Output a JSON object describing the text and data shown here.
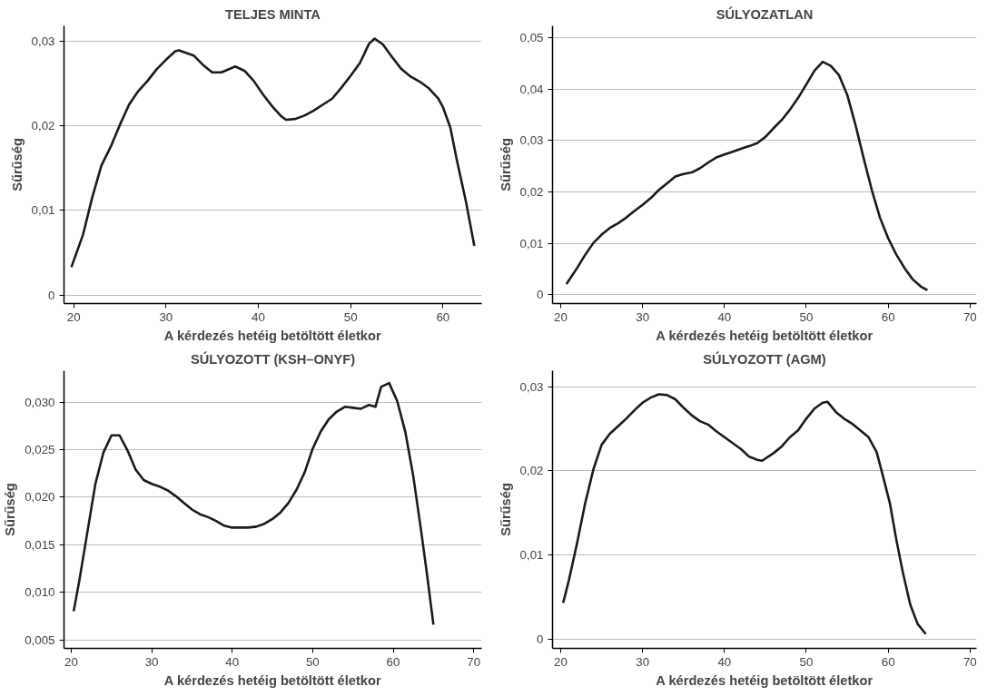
{
  "chart_data": [
    {
      "type": "line",
      "title": "TELJES MINTA",
      "xlabel": "A kérdezés hetéig betöltött életkor",
      "ylabel": "Sűrűség",
      "xlim": [
        18.95,
        64.2
      ],
      "xticks": [
        20,
        30,
        40,
        50,
        60
      ],
      "ylim": [
        -0.001,
        0.0318
      ],
      "yticks": [
        {
          "value": 0,
          "label": "0"
        },
        {
          "value": 0.01,
          "label": "0,01"
        },
        {
          "value": 0.02,
          "label": "0,02"
        },
        {
          "value": 0.03,
          "label": "0,03"
        }
      ],
      "grid": "y",
      "line_style": "solid",
      "series": [
        {
          "color": "#1a1a1a",
          "x": [
            19.75,
            21,
            22,
            23,
            24,
            25,
            26,
            27,
            28,
            29,
            30,
            31,
            31.4,
            33,
            34,
            35,
            36,
            37.5,
            38.5,
            39.5,
            40.5,
            41.5,
            42.5,
            43,
            44,
            45,
            46,
            47,
            48,
            49,
            50,
            51,
            52,
            52.6,
            53.5,
            54.5,
            55.5,
            56.5,
            57.5,
            58.5,
            59.5,
            60,
            60.8,
            61.5,
            62.5,
            63.4
          ],
          "values": [
            0.0033,
            0.0071,
            0.0115,
            0.0153,
            0.0175,
            0.0201,
            0.0225,
            0.0241,
            0.0253,
            0.0267,
            0.0278,
            0.0288,
            0.0289,
            0.0283,
            0.0272,
            0.0263,
            0.0263,
            0.027,
            0.0265,
            0.0253,
            0.0237,
            0.0223,
            0.0211,
            0.0207,
            0.0208,
            0.0212,
            0.0218,
            0.0225,
            0.0232,
            0.0245,
            0.0259,
            0.0274,
            0.0297,
            0.0303,
            0.0296,
            0.0281,
            0.0267,
            0.0258,
            0.0252,
            0.0244,
            0.0232,
            0.0222,
            0.0198,
            0.016,
            0.011,
            0.0058
          ]
        }
      ]
    },
    {
      "type": "line",
      "title": "SÚLYOZATLAN",
      "xlabel": "A kérdezés hetéig betöltött életkor",
      "ylabel": "Sűrűség",
      "xlim": [
        19,
        70.8
      ],
      "xticks": [
        20,
        30,
        40,
        50,
        60,
        70
      ],
      "ylim": [
        -0.0017,
        0.0523
      ],
      "yticks": [
        {
          "value": 0,
          "label": "0"
        },
        {
          "value": 0.01,
          "label": "0,01"
        },
        {
          "value": 0.02,
          "label": "0,02"
        },
        {
          "value": 0.03,
          "label": "0,03"
        },
        {
          "value": 0.04,
          "label": "0,04"
        },
        {
          "value": 0.05,
          "label": "0,05"
        }
      ],
      "grid": "y",
      "line_style": "solid",
      "series": [
        {
          "color": "#1a1a1a",
          "x": [
            20.7,
            22,
            23,
            24,
            25,
            26,
            27,
            28,
            29,
            30,
            31,
            32,
            33,
            34,
            35,
            36,
            37,
            38,
            39,
            40,
            41,
            42,
            43,
            44,
            45,
            46,
            47,
            48,
            49,
            50,
            51,
            52,
            53,
            54,
            55,
            56,
            57,
            58,
            59,
            60,
            61,
            62,
            63,
            64,
            64.8
          ],
          "values": [
            0.0021,
            0.0052,
            0.0078,
            0.0101,
            0.0117,
            0.013,
            0.0139,
            0.015,
            0.0163,
            0.0175,
            0.0188,
            0.0204,
            0.0217,
            0.023,
            0.0235,
            0.0238,
            0.0246,
            0.0257,
            0.0267,
            0.0273,
            0.0278,
            0.0284,
            0.0289,
            0.0295,
            0.0307,
            0.0324,
            0.034,
            0.036,
            0.0383,
            0.0409,
            0.0436,
            0.0453,
            0.0445,
            0.0427,
            0.0389,
            0.0331,
            0.0266,
            0.0204,
            0.015,
            0.011,
            0.0078,
            0.0052,
            0.003,
            0.0016,
            0.0009
          ]
        }
      ]
    },
    {
      "type": "line",
      "title": "SÚLYOZOTT (KSH–ONYF)",
      "xlabel": "A kérdezés hetéig betöltött életkor",
      "ylabel": "Sűrűség",
      "xlim": [
        19.1,
        71
      ],
      "xticks": [
        20,
        30,
        40,
        50,
        60,
        70
      ],
      "ylim": [
        0.0041,
        0.0333
      ],
      "yticks": [
        {
          "value": 0.005,
          "label": "0,005"
        },
        {
          "value": 0.01,
          "label": "0,010"
        },
        {
          "value": 0.015,
          "label": "0,015"
        },
        {
          "value": 0.02,
          "label": "0,020"
        },
        {
          "value": 0.025,
          "label": "0,025"
        },
        {
          "value": 0.03,
          "label": "0,030"
        }
      ],
      "grid": "y",
      "line_style": "solid",
      "series": [
        {
          "color": "#1a1a1a",
          "x": [
            20.3,
            21,
            22,
            23,
            24,
            25,
            26,
            27,
            28,
            29,
            30,
            31,
            32,
            33,
            34,
            35,
            36,
            37,
            38,
            39,
            40,
            41,
            42,
            43,
            44,
            45,
            46,
            47,
            48,
            49,
            50,
            51,
            52,
            53,
            54,
            55,
            56,
            57,
            57.8,
            58.5,
            59.5,
            60.5,
            61.5,
            62.5,
            63.5,
            64.2,
            65
          ],
          "values": [
            0.008,
            0.0112,
            0.0163,
            0.0214,
            0.0247,
            0.0265,
            0.0265,
            0.0249,
            0.0229,
            0.0218,
            0.0214,
            0.0211,
            0.0207,
            0.0201,
            0.0194,
            0.0187,
            0.0182,
            0.0179,
            0.0175,
            0.017,
            0.0168,
            0.0168,
            0.0168,
            0.0169,
            0.0172,
            0.0177,
            0.0184,
            0.0194,
            0.0208,
            0.0226,
            0.0251,
            0.0269,
            0.0282,
            0.029,
            0.0295,
            0.0294,
            0.0293,
            0.0297,
            0.0295,
            0.0316,
            0.032,
            0.0301,
            0.0269,
            0.0222,
            0.0163,
            0.0119,
            0.0066
          ]
        }
      ]
    },
    {
      "type": "line",
      "title": "SÚLYOZOTT (AGM)",
      "xlabel": "A kérdezés hetéig betöltött életkor",
      "ylabel": "Sűrűség",
      "xlim": [
        19,
        70.8
      ],
      "xticks": [
        20,
        30,
        40,
        50,
        60,
        70
      ],
      "ylim": [
        -0.0011,
        0.0319
      ],
      "yticks": [
        {
          "value": 0,
          "label": "0"
        },
        {
          "value": 0.01,
          "label": "0,01"
        },
        {
          "value": 0.02,
          "label": "0,02"
        },
        {
          "value": 0.03,
          "label": "0,03"
        }
      ],
      "grid": "y",
      "line_style": "solid",
      "series": [
        {
          "color": "#1a1a1a",
          "x": [
            20.3,
            21,
            22,
            23,
            24,
            25,
            26,
            27,
            28,
            29,
            30,
            31,
            32,
            33,
            34,
            35,
            36,
            37,
            38,
            39,
            40,
            41,
            42,
            43,
            44,
            44.6,
            46,
            47,
            48,
            49,
            50,
            51,
            52,
            52.6,
            53.6,
            54.6,
            55.6,
            56.6,
            57.6,
            58.6,
            59.2,
            60.2,
            61,
            61.8,
            62.7,
            63.6,
            64.6
          ],
          "values": [
            0.0043,
            0.007,
            0.0114,
            0.0162,
            0.0202,
            0.0231,
            0.0244,
            0.0253,
            0.0262,
            0.0272,
            0.0281,
            0.0287,
            0.0291,
            0.029,
            0.0285,
            0.0275,
            0.0266,
            0.0259,
            0.0255,
            0.0247,
            0.024,
            0.0233,
            0.0226,
            0.0217,
            0.0213,
            0.0212,
            0.0221,
            0.0229,
            0.024,
            0.0248,
            0.0262,
            0.0274,
            0.0281,
            0.0282,
            0.027,
            0.0262,
            0.0256,
            0.0248,
            0.024,
            0.0222,
            0.02,
            0.0162,
            0.0118,
            0.0079,
            0.0041,
            0.0018,
            0.0006
          ]
        }
      ]
    }
  ]
}
